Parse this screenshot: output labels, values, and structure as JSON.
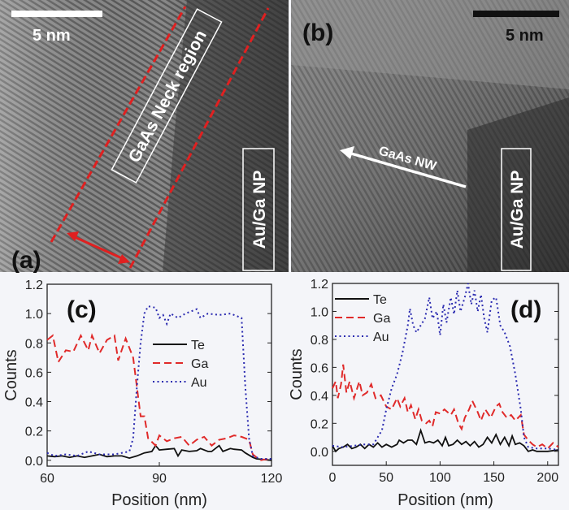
{
  "panels": {
    "a": {
      "label": "(a)",
      "scale_bar": "5 nm",
      "region_label": "GaAs Neck region",
      "np_label": "Au/Ga NP"
    },
    "b": {
      "label": "(b)",
      "scale_bar": "5 nm",
      "arrow_label": "GaAs NW",
      "np_label": "Au/Ga NP"
    }
  },
  "colors": {
    "Te": "#111111",
    "Ga": "#e02a2a",
    "Au": "#2a2ab0",
    "marker": "#e02020"
  },
  "chart_data": [
    {
      "type": "line",
      "panel_label": "(c)",
      "xlabel": "Position (nm)",
      "ylabel": "Counts",
      "xlim": [
        60,
        120
      ],
      "ylim": [
        -0.04,
        1.2
      ],
      "xticks": [
        60,
        90,
        120
      ],
      "yticks": [
        "0.0",
        "0.2",
        "0.4",
        "0.6",
        "0.8",
        "1.0",
        "1.2"
      ],
      "legend": "center",
      "series": [
        {
          "name": "Te",
          "style": "solid",
          "x": [
            60,
            62,
            64,
            66,
            68,
            70,
            72,
            74,
            76,
            78,
            80,
            82,
            84,
            86,
            88,
            89,
            90,
            92,
            94,
            95,
            96,
            98,
            100,
            101,
            103,
            104,
            106,
            107,
            109,
            110,
            112,
            113,
            115,
            116,
            118,
            120
          ],
          "y": [
            0.03,
            0.025,
            0.03,
            0.02,
            0.03,
            0.02,
            0.03,
            0.04,
            0.025,
            0.03,
            0.03,
            0.015,
            0.03,
            0.05,
            0.06,
            0.1,
            0.07,
            0.075,
            0.08,
            0.03,
            0.07,
            0.06,
            0.065,
            0.08,
            0.06,
            0.06,
            0.1,
            0.06,
            0.08,
            0.075,
            0.07,
            0.05,
            0.02,
            0.01,
            0.005,
            0.0
          ]
        },
        {
          "name": "Ga",
          "style": "dashed",
          "x": [
            60,
            61.5,
            63,
            65,
            67,
            69,
            71,
            72,
            74,
            76,
            78,
            79,
            81,
            83,
            85,
            86,
            87,
            89,
            90,
            92,
            94,
            96,
            98,
            100,
            102,
            104,
            106,
            108,
            110,
            112,
            114,
            115,
            117,
            118,
            120
          ],
          "y": [
            0.82,
            0.85,
            0.67,
            0.75,
            0.74,
            0.85,
            0.75,
            0.85,
            0.73,
            0.82,
            0.85,
            0.68,
            0.83,
            0.7,
            0.3,
            0.3,
            0.15,
            0.1,
            0.17,
            0.13,
            0.15,
            0.16,
            0.1,
            0.14,
            0.16,
            0.1,
            0.14,
            0.15,
            0.17,
            0.16,
            0.14,
            0.04,
            0.0,
            0.005,
            0.01
          ]
        },
        {
          "name": "Au",
          "style": "dotted",
          "x": [
            60,
            62,
            65,
            68,
            71,
            74,
            78,
            82,
            83,
            84,
            85,
            86,
            87,
            89,
            90,
            91,
            92,
            93,
            95,
            97,
            100,
            101,
            103,
            106,
            109,
            112,
            113,
            114,
            115,
            117,
            120
          ],
          "y": [
            0.05,
            0.03,
            0.04,
            0.03,
            0.06,
            0.04,
            0.04,
            0.06,
            0.15,
            0.5,
            0.8,
            1.0,
            1.05,
            1.04,
            0.97,
            0.99,
            0.93,
            1.0,
            0.97,
            1.0,
            1.03,
            0.97,
            1.0,
            0.99,
            1.0,
            0.97,
            0.5,
            0.15,
            0.03,
            0.01,
            0.01
          ]
        }
      ]
    },
    {
      "type": "line",
      "panel_label": "(d)",
      "xlabel": "Position (nm)",
      "ylabel": "Counts",
      "xlim": [
        0,
        210
      ],
      "ylim": [
        -0.1,
        1.2
      ],
      "xticks": [
        0,
        50,
        100,
        150,
        200
      ],
      "yticks": [
        "0.0",
        "0.2",
        "0.4",
        "0.6",
        "0.8",
        "1.0",
        "1.2"
      ],
      "legend": "top-left",
      "series": [
        {
          "name": "Te",
          "style": "solid",
          "x": [
            0,
            3,
            6,
            10,
            14,
            18,
            22,
            26,
            30,
            34,
            38,
            42,
            46,
            50,
            55,
            60,
            62,
            66,
            70,
            74,
            78,
            82,
            86,
            90,
            94,
            98,
            102,
            105,
            108,
            112,
            116,
            120,
            124,
            128,
            132,
            136,
            140,
            144,
            148,
            152,
            156,
            160,
            164,
            167,
            170,
            174,
            178,
            182,
            186,
            190,
            200,
            210
          ],
          "y": [
            0.04,
            0.0,
            0.02,
            0.03,
            0.05,
            0.02,
            0.03,
            0.05,
            0.02,
            0.05,
            0.03,
            0.06,
            0.03,
            0.05,
            0.03,
            0.05,
            0.08,
            0.06,
            0.08,
            0.08,
            0.05,
            0.15,
            0.06,
            0.07,
            0.06,
            0.08,
            0.04,
            0.1,
            0.04,
            0.05,
            0.08,
            0.05,
            0.07,
            0.04,
            0.07,
            0.03,
            0.05,
            0.1,
            0.06,
            0.12,
            0.05,
            0.1,
            0.04,
            0.11,
            0.05,
            0.06,
            0.04,
            0.0,
            0.01,
            0.0,
            0.0,
            0.01
          ]
        },
        {
          "name": "Ga",
          "style": "dashed",
          "x": [
            0,
            3,
            5,
            8,
            10,
            13,
            16,
            20,
            25,
            28,
            32,
            36,
            40,
            45,
            50,
            55,
            60,
            63,
            67,
            70,
            73,
            77,
            80,
            83,
            87,
            90,
            93,
            96,
            100,
            104,
            107,
            110,
            113,
            117,
            120,
            123,
            127,
            130,
            135,
            138,
            142,
            147,
            152,
            155,
            158,
            162,
            166,
            170,
            175,
            178,
            182,
            186,
            190,
            195,
            200,
            205,
            210
          ],
          "y": [
            0.45,
            0.5,
            0.38,
            0.48,
            0.62,
            0.42,
            0.5,
            0.38,
            0.5,
            0.4,
            0.42,
            0.48,
            0.38,
            0.4,
            0.32,
            0.3,
            0.38,
            0.32,
            0.38,
            0.28,
            0.33,
            0.23,
            0.3,
            0.22,
            0.2,
            0.22,
            0.18,
            0.28,
            0.27,
            0.3,
            0.28,
            0.26,
            0.3,
            0.2,
            0.16,
            0.24,
            0.3,
            0.36,
            0.28,
            0.22,
            0.3,
            0.24,
            0.32,
            0.34,
            0.28,
            0.24,
            0.26,
            0.22,
            0.26,
            0.12,
            0.08,
            0.05,
            0.03,
            0.05,
            0.02,
            0.06,
            0.03
          ]
        },
        {
          "name": "Au",
          "style": "dotted",
          "x": [
            0,
            10,
            20,
            30,
            38,
            42,
            46,
            50,
            55,
            60,
            65,
            70,
            72,
            75,
            78,
            82,
            86,
            90,
            93,
            97,
            100,
            103,
            106,
            110,
            113,
            116,
            119,
            123,
            126,
            129,
            132,
            135,
            138,
            141,
            144,
            148,
            152,
            156,
            160,
            165,
            170,
            175,
            178,
            182,
            190,
            200,
            210
          ],
          "y": [
            0.04,
            0.03,
            0.04,
            0.05,
            0.05,
            0.1,
            0.15,
            0.3,
            0.45,
            0.55,
            0.7,
            0.9,
            1.02,
            0.9,
            0.85,
            0.9,
            0.95,
            1.1,
            0.95,
            1.0,
            0.83,
            1.05,
            0.92,
            1.1,
            0.98,
            1.15,
            1.0,
            1.1,
            1.2,
            1.05,
            1.15,
            1.0,
            1.12,
            0.95,
            0.85,
            1.08,
            1.1,
            0.9,
            0.85,
            0.75,
            0.55,
            0.3,
            0.1,
            0.03,
            0.02,
            0.02,
            0.01
          ]
        }
      ]
    }
  ]
}
